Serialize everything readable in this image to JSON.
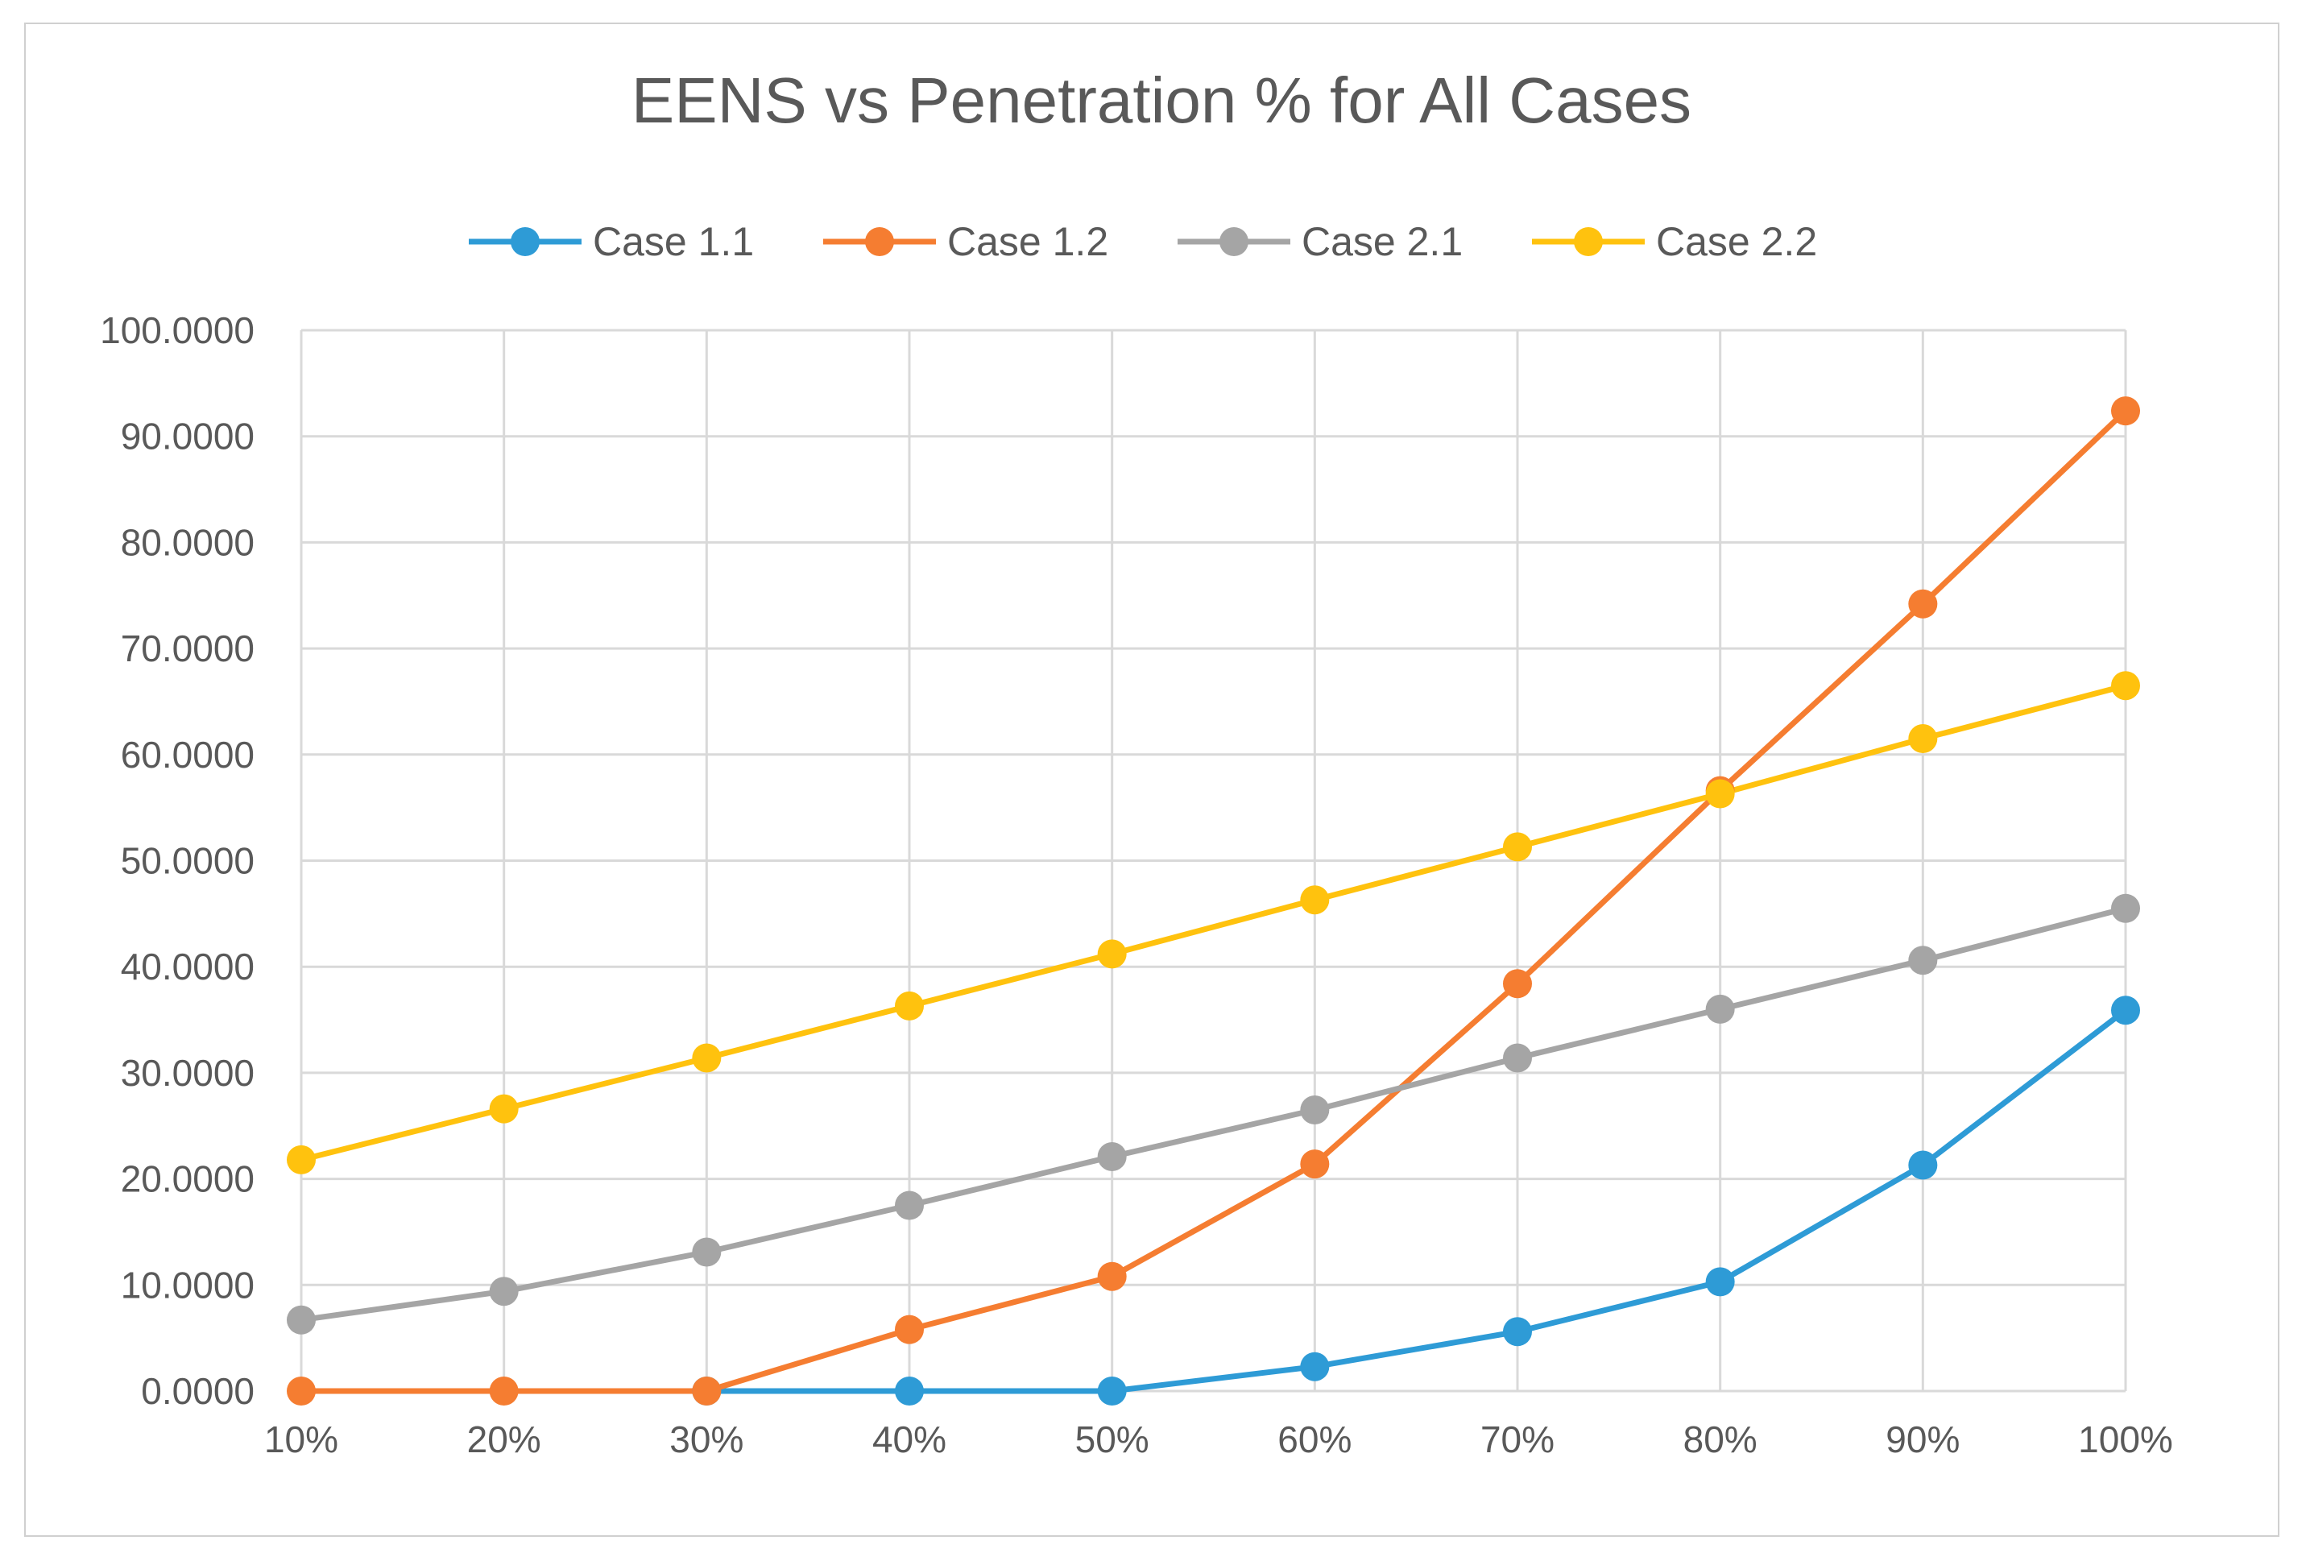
{
  "chart_data": {
    "type": "line",
    "title": "EENS vs Penetration % for All Cases",
    "xlabel": "",
    "ylabel": "",
    "categories": [
      "10%",
      "20%",
      "30%",
      "40%",
      "50%",
      "60%",
      "70%",
      "80%",
      "90%",
      "100%"
    ],
    "ylim": [
      0,
      100
    ],
    "y_ticks": [
      "0.0000",
      "10.0000",
      "20.0000",
      "30.0000",
      "40.0000",
      "50.0000",
      "60.0000",
      "70.0000",
      "80.0000",
      "90.0000",
      "100.0000"
    ],
    "grid": true,
    "legend_position": "top",
    "series": [
      {
        "name": "Case 1.1",
        "color": "#2E9BD6",
        "values": [
          null,
          null,
          0.0,
          0.0,
          0.0,
          2.3,
          5.6,
          10.3,
          21.3,
          35.9
        ]
      },
      {
        "name": "Case 1.2",
        "color": "#F57D31",
        "values": [
          0.0,
          0.0,
          0.0,
          5.8,
          10.8,
          21.4,
          38.4,
          56.6,
          74.2,
          92.4
        ]
      },
      {
        "name": "Case 2.1",
        "color": "#A5A5A5",
        "values": [
          6.7,
          9.4,
          13.1,
          17.5,
          22.1,
          26.5,
          31.4,
          36.0,
          40.6,
          45.5
        ]
      },
      {
        "name": "Case 2.2",
        "color": "#FFC20E",
        "values": [
          21.8,
          26.6,
          31.4,
          36.3,
          41.2,
          46.3,
          51.3,
          56.3,
          61.5,
          66.5
        ]
      }
    ]
  }
}
